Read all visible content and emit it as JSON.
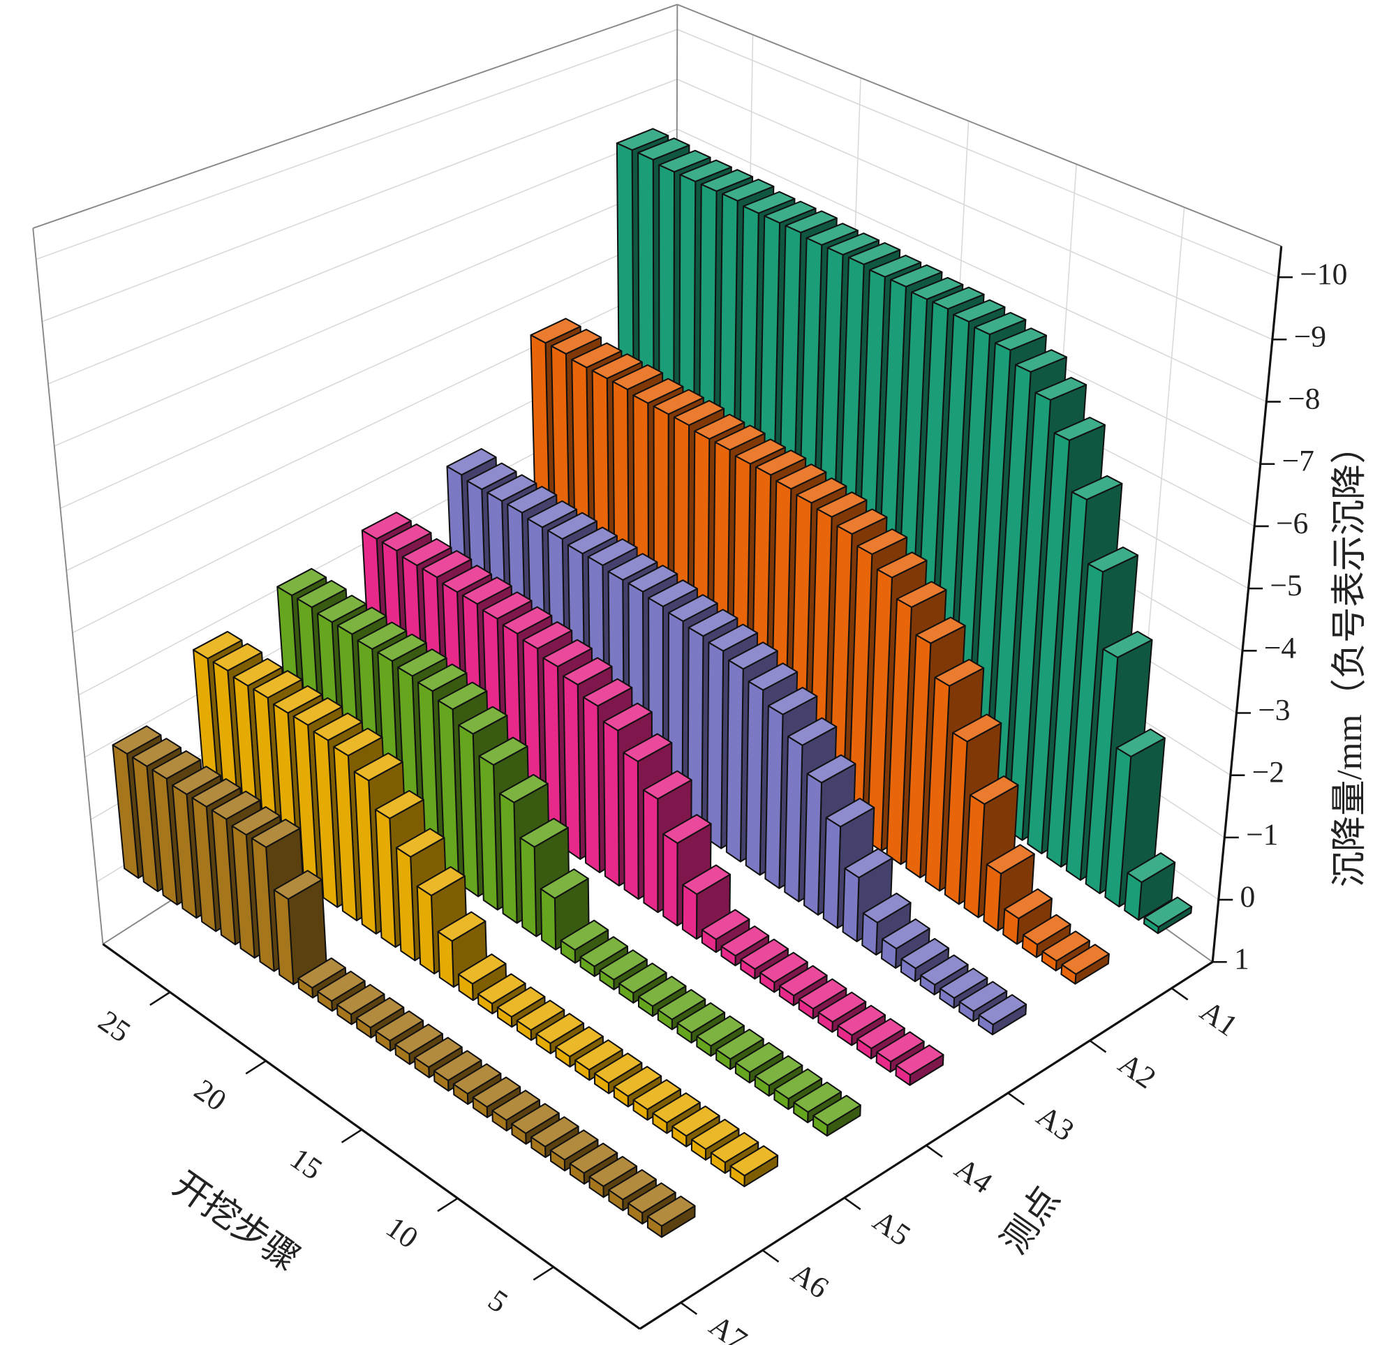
{
  "chart_data": {
    "type": "bar3d",
    "x_label": "开挖步骤",
    "y_label": "测点",
    "z_label": "沉降量/mm（负号表示沉降）",
    "x": [
      1,
      2,
      3,
      4,
      5,
      6,
      7,
      8,
      9,
      10,
      11,
      12,
      13,
      14,
      15,
      16,
      17,
      18,
      19,
      20,
      21,
      22,
      23,
      24,
      25,
      26,
      27,
      28
    ],
    "xlim": [
      0.5,
      28.5
    ],
    "xticks": [
      5,
      10,
      15,
      20,
      25
    ],
    "zlim": [
      1,
      -10.5
    ],
    "zticks": [
      1,
      0,
      {
        "value": -1,
        "label": "−1"
      },
      {
        "value": -2,
        "label": "−2"
      },
      {
        "value": -3,
        "label": "−3"
      },
      {
        "value": -4,
        "label": "−4"
      },
      {
        "value": -5,
        "label": "−5"
      },
      {
        "value": -6,
        "label": "−6"
      },
      {
        "value": -7,
        "label": "−7"
      },
      {
        "value": -8,
        "label": "−8"
      },
      {
        "value": -9,
        "label": "−9"
      },
      {
        "value": -10,
        "label": "−10"
      }
    ],
    "grid": true,
    "series": [
      {
        "name": "A1",
        "color": "#1b9e77",
        "values": [
          -0.1,
          -0.6,
          -2.4,
          -3.8,
          -5.0,
          -6.0,
          -6.8,
          -7.3,
          -7.6,
          -7.8,
          -7.9,
          -7.95,
          -8.0,
          -8.0,
          -8.05,
          -8.05,
          -8.1,
          -8.1,
          -8.1,
          -8.15,
          -8.15,
          -8.15,
          -8.2,
          -8.2,
          -8.2,
          -8.2,
          -8.25,
          -8.25
        ]
      },
      {
        "name": "A2",
        "color": "#e8650a",
        "values": [
          -0.15,
          -0.15,
          -0.2,
          -0.4,
          -0.9,
          -1.8,
          -2.6,
          -3.3,
          -3.8,
          -4.2,
          -4.5,
          -4.7,
          -4.85,
          -4.95,
          -5.0,
          -5.05,
          -5.1,
          -5.1,
          -5.15,
          -5.15,
          -5.2,
          -5.2,
          -5.2,
          -5.25,
          -5.25,
          -5.25,
          -5.3,
          -5.3
        ]
      },
      {
        "name": "A3",
        "color": "#7b78c4",
        "values": [
          -0.15,
          -0.15,
          -0.15,
          -0.15,
          -0.2,
          -0.3,
          -0.5,
          -1.0,
          -1.6,
          -2.1,
          -2.5,
          -2.8,
          -3.0,
          -3.15,
          -3.25,
          -3.3,
          -3.35,
          -3.4,
          -3.45,
          -3.45,
          -3.5,
          -3.5,
          -3.55,
          -3.55,
          -3.6,
          -3.6,
          -3.6,
          -3.65
        ]
      },
      {
        "name": "A4",
        "color": "#e7298a",
        "values": [
          -0.15,
          -0.15,
          -0.15,
          -0.15,
          -0.15,
          -0.15,
          -0.15,
          -0.15,
          -0.15,
          -0.15,
          -0.2,
          -0.7,
          -1.3,
          -1.8,
          -2.2,
          -2.5,
          -2.7,
          -2.85,
          -2.95,
          -3.05,
          -3.1,
          -3.15,
          -3.2,
          -3.2,
          -3.25,
          -3.25,
          -3.3,
          -3.3
        ]
      },
      {
        "name": "A5",
        "color": "#66a61e",
        "values": [
          -0.15,
          -0.15,
          -0.15,
          -0.15,
          -0.15,
          -0.15,
          -0.15,
          -0.15,
          -0.15,
          -0.15,
          -0.15,
          -0.15,
          -0.15,
          -0.2,
          -0.8,
          -1.4,
          -1.9,
          -2.3,
          -2.6,
          -2.8,
          -2.9,
          -2.95,
          -3.0,
          -3.0,
          -3.05,
          -3.05,
          -3.1,
          -3.1
        ]
      },
      {
        "name": "A6",
        "color": "#e6ab02",
        "values": [
          -0.15,
          -0.15,
          -0.15,
          -0.15,
          -0.15,
          -0.15,
          -0.15,
          -0.15,
          -0.15,
          -0.15,
          -0.15,
          -0.15,
          -0.15,
          -0.15,
          -0.25,
          -0.7,
          -1.2,
          -1.6,
          -2.0,
          -2.4,
          -2.6,
          -2.65,
          -2.7,
          -2.7,
          -2.75,
          -2.75,
          -2.8,
          -2.8
        ]
      },
      {
        "name": "A7",
        "color": "#a6761d",
        "values": [
          -0.15,
          -0.15,
          -0.15,
          -0.15,
          -0.15,
          -0.15,
          -0.15,
          -0.15,
          -0.15,
          -0.15,
          -0.15,
          -0.15,
          -0.15,
          -0.15,
          -0.15,
          -0.15,
          -0.15,
          -0.15,
          -0.15,
          -1.3,
          -1.9,
          -1.9,
          -1.95,
          -1.95,
          -1.95,
          -2.0,
          -2.0,
          -2.0
        ]
      }
    ]
  }
}
